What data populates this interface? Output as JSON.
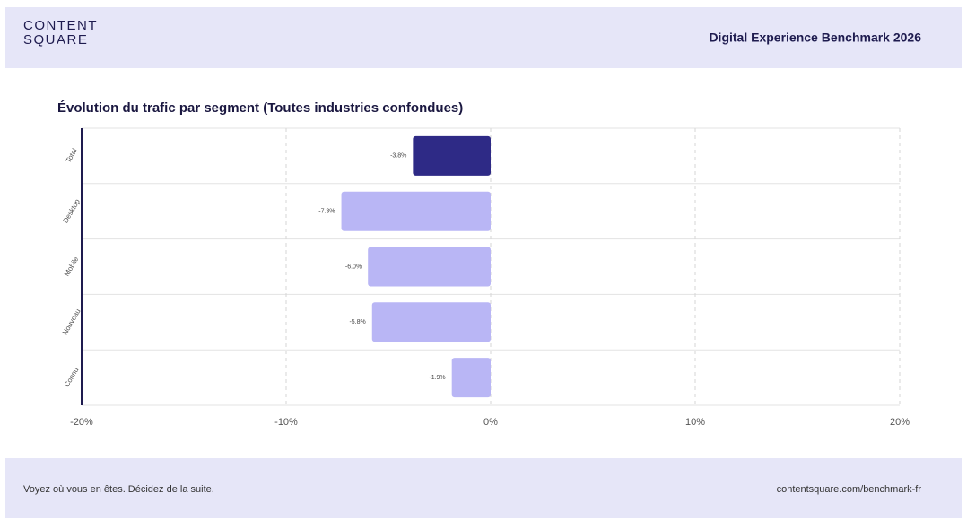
{
  "header": {
    "logo": [
      "CONTENT",
      "SQUARE"
    ],
    "title": "Digital Experience Benchmark 2026"
  },
  "chart_data": {
    "type": "hbar",
    "title": "Évolution du trafic par segment (Toutes industries confondues)",
    "categories": [
      "Total",
      "Desktop",
      "Mobile",
      "Nouveau",
      "Connu"
    ],
    "values": [
      -3.8,
      -7.3,
      -6.0,
      -5.8,
      -1.9
    ],
    "value_labels": [
      "-3.8%",
      "-7.3%",
      "-6.0%",
      "-5.8%",
      "-1.9%"
    ],
    "colors": [
      "#2e2a86",
      "#b9b6f5",
      "#b9b6f5",
      "#b9b6f5",
      "#b9b6f5"
    ],
    "xlim": [
      -20,
      20
    ],
    "xticks": [
      {
        "value": -20,
        "label": "-20%"
      },
      {
        "value": -10,
        "label": "-10%"
      },
      {
        "value": 0,
        "label": "0%"
      },
      {
        "value": 10,
        "label": "10%"
      },
      {
        "value": 20,
        "label": "20%"
      }
    ],
    "grid": true
  },
  "footer": {
    "left": "Voyez où vous en êtes. Décidez de la suite.",
    "right": "contentsquare.com/benchmark-fr"
  }
}
